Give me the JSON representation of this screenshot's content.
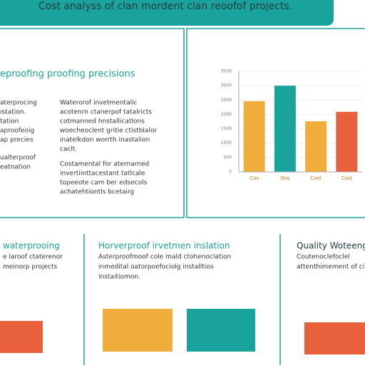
{
  "header": {
    "title": "Cost analyss of clan mordent clan reoofof projects."
  },
  "panel_left": {
    "heading": "eproofing proofing precisions",
    "col1": [
      "aterprocing",
      "ıstation.",
      "tation",
      "aproofeoig",
      "ap precies",
      "ualterproof",
      "eatnation"
    ],
    "col2": [
      "Waterorof invetmentalic",
      "acotenrn ctanerpof tatalricts",
      "cotmanned hnstallicatlons",
      "woecheoclent gritie ctistblalor",
      "inatelkdon worrth inastalion",
      "caclt.",
      "Costamental fnr aternarned",
      "invertiinttacestant tatlcale",
      "topeeote cam ber edsecols",
      "achatehtiontls bcetairg"
    ]
  },
  "chart_data": {
    "type": "bar",
    "categories": [
      "Cos",
      "Gos",
      "Cost",
      "Cost"
    ],
    "values": [
      2460,
      3000,
      1760,
      2090
    ],
    "colors": [
      "#f0ad3c",
      "#1aa39c",
      "#f0ad3c",
      "#e8603c"
    ],
    "ylim": [
      0,
      3500
    ],
    "yticks": [
      0,
      500,
      1000,
      1500,
      2000,
      2500,
      3000,
      3500
    ]
  },
  "panels": [
    {
      "heading": "waterprooing",
      "lines": [
        "e laroof ctaterenor",
        "meinorp projects"
      ]
    },
    {
      "heading": "Horverproof irvetmen inslation",
      "lines": [
        "Asterproofmoof cole mald ctohenoclation",
        "inmedital oatorpoefociolg installtios",
        "instaitiomon."
      ]
    },
    {
      "heading": "Quality Woteeng",
      "lines": [
        "Coutenoclefoclel",
        "attenthimement of ci"
      ]
    }
  ]
}
